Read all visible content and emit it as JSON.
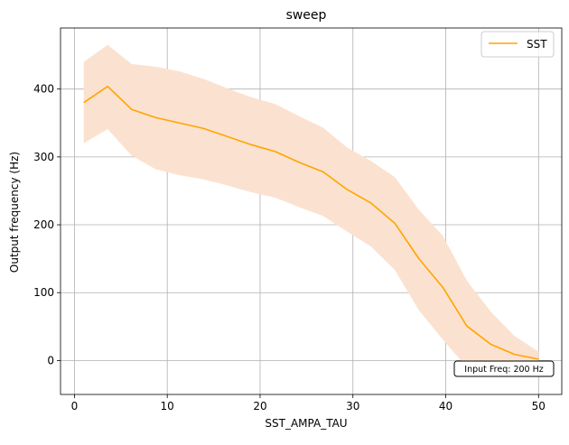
{
  "chart_data": {
    "type": "line",
    "title": "sweep",
    "xlabel": "SST_AMPA_TAU",
    "ylabel": "Output frequency (Hz)",
    "xlim": [
      -1.5,
      52.5
    ],
    "ylim": [
      -50,
      490
    ],
    "xticks": [
      0,
      10,
      20,
      30,
      40,
      50
    ],
    "yticks": [
      0,
      100,
      200,
      300,
      400
    ],
    "grid": true,
    "legend_position": "top-right",
    "annotation": "Input Freq: 200 Hz",
    "series": [
      {
        "name": "SST",
        "color": "#ffa500",
        "band_color": "#fbe1cf",
        "x": [
          1.0,
          3.58,
          6.16,
          8.74,
          11.32,
          13.89,
          16.47,
          19.05,
          21.63,
          24.21,
          26.79,
          29.37,
          31.95,
          34.53,
          37.11,
          39.68,
          42.26,
          44.84,
          47.42,
          50.0
        ],
        "y": [
          380,
          404,
          370,
          358,
          350,
          342,
          330,
          318,
          308,
          292,
          278,
          252,
          232,
          202,
          150,
          108,
          51,
          24,
          9,
          2
        ],
        "lower": [
          320,
          341,
          302,
          282,
          273,
          267,
          258,
          248,
          240,
          226,
          213,
          190,
          168,
          133,
          74,
          31,
          -10,
          -10,
          -8,
          -6
        ],
        "upper": [
          440,
          465,
          437,
          433,
          426,
          415,
          401,
          388,
          378,
          360,
          343,
          314,
          294,
          270,
          222,
          184,
          118,
          72,
          36,
          13
        ]
      }
    ]
  }
}
